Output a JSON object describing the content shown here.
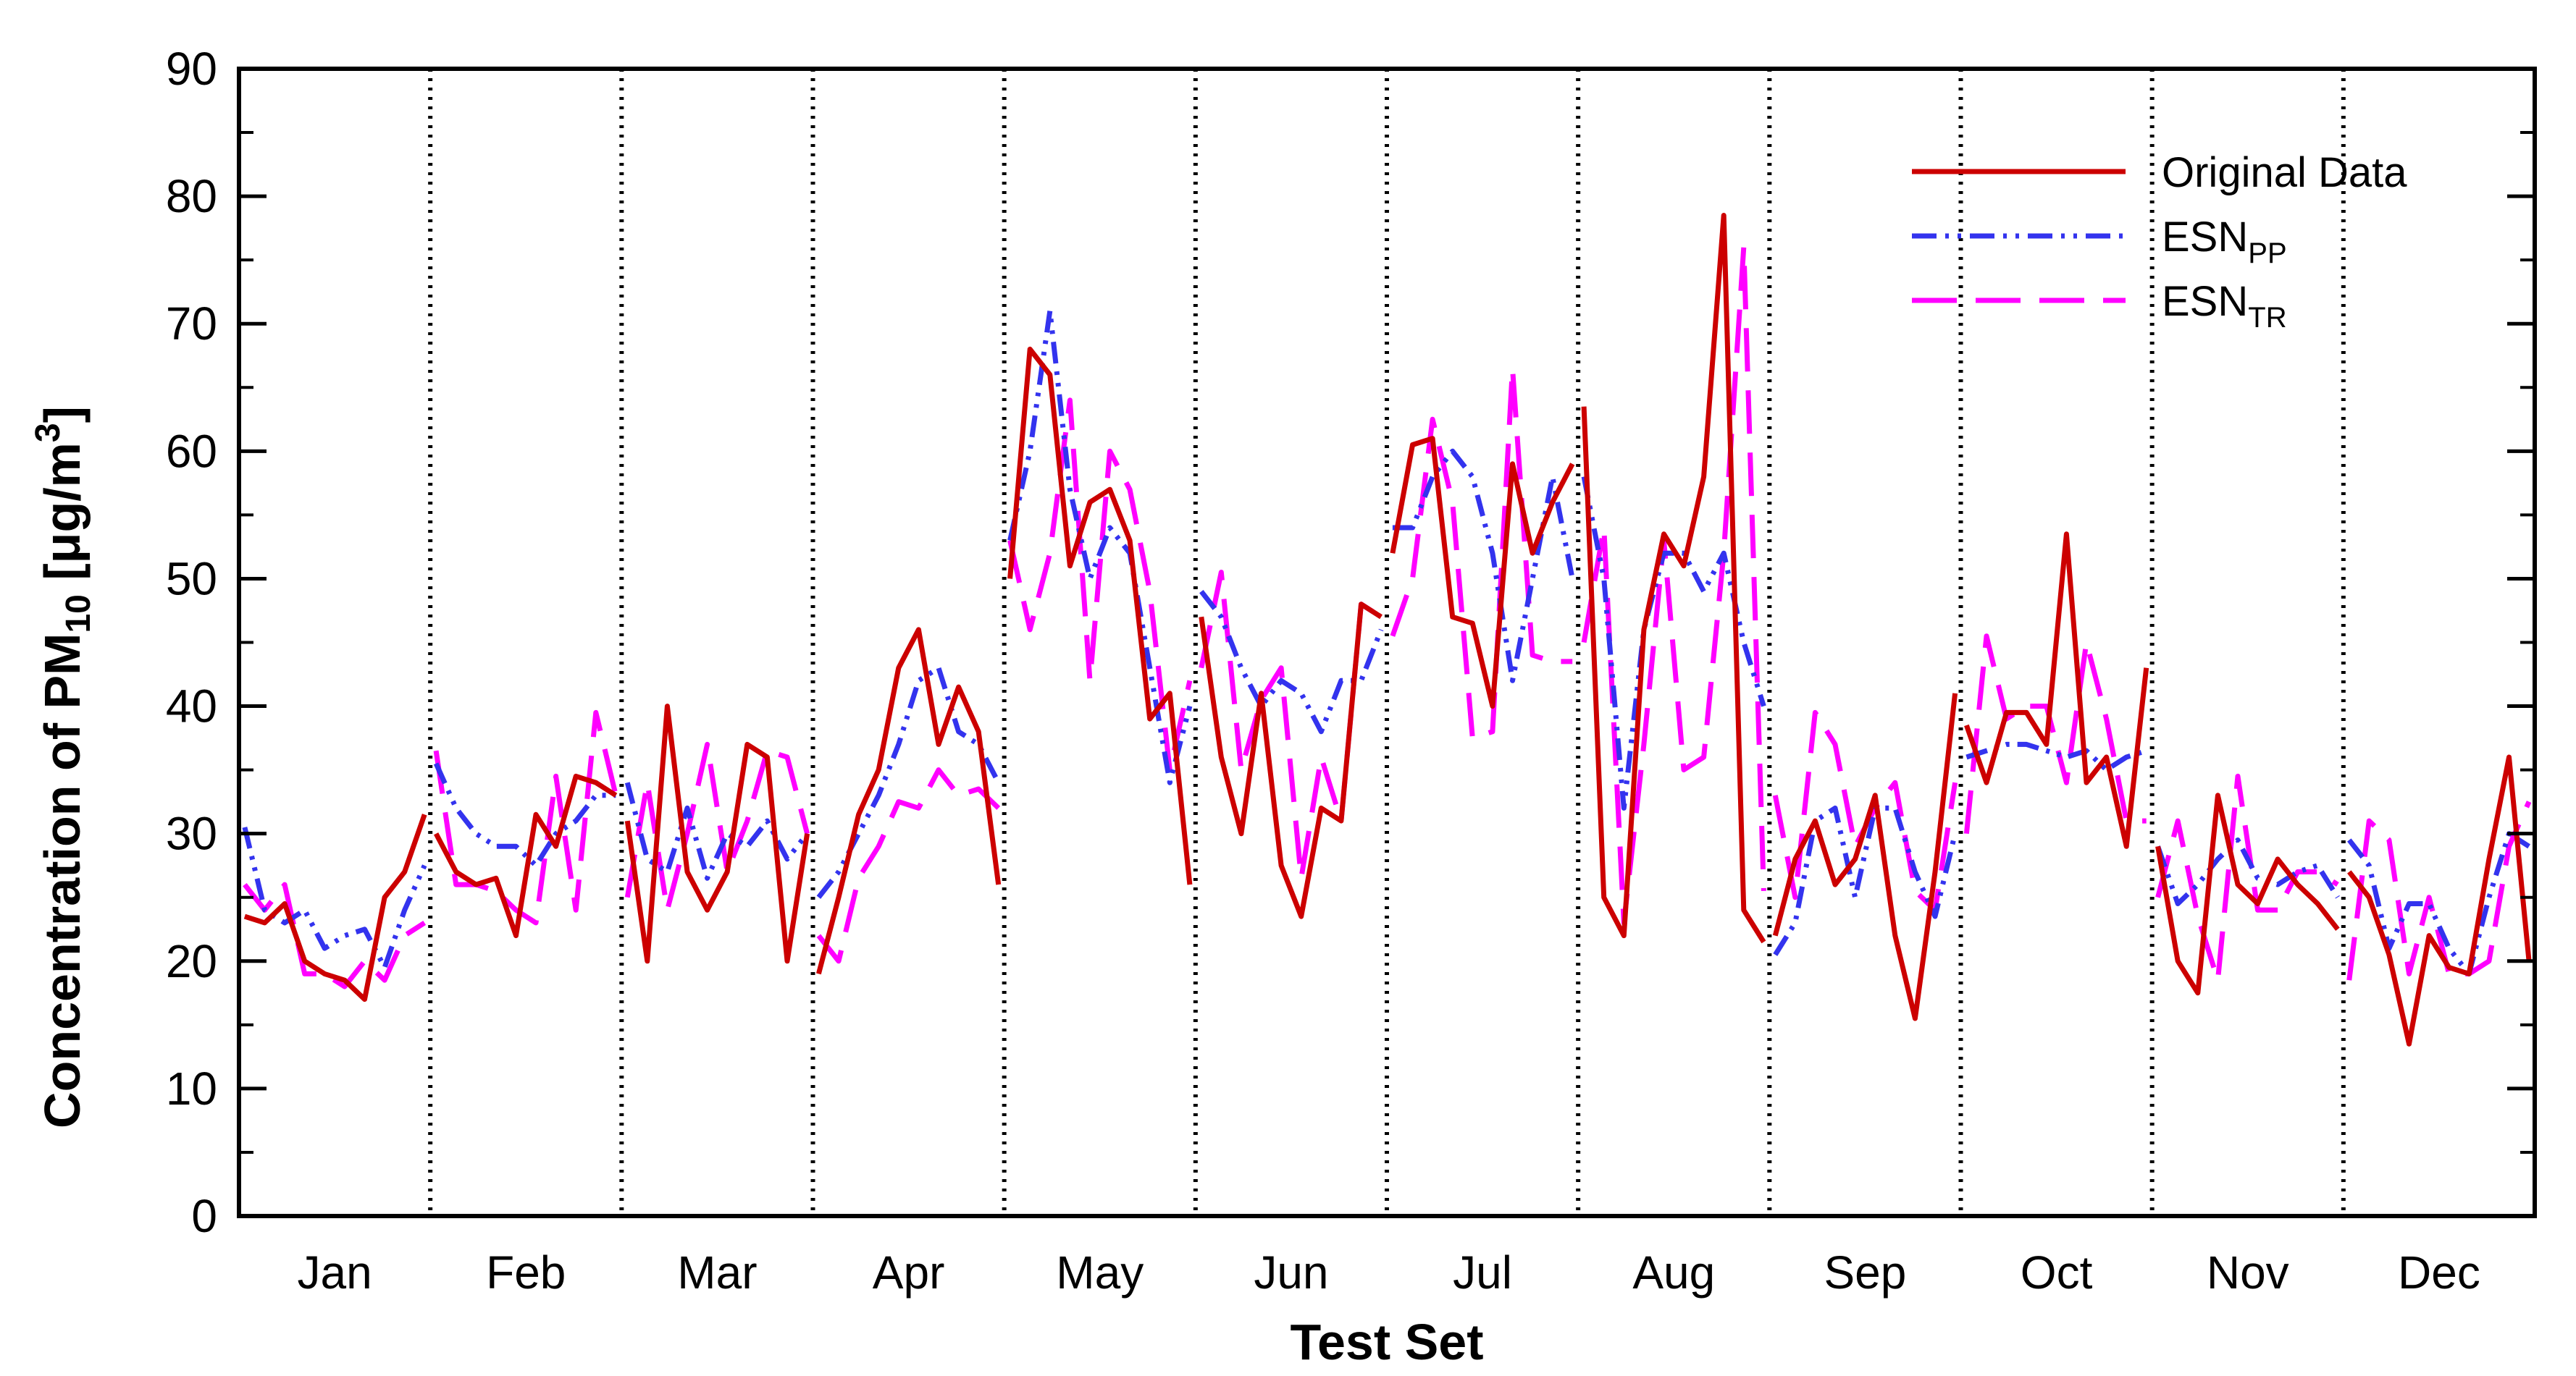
{
  "chart_data": {
    "type": "line",
    "title": "",
    "xlabel": "Test Set",
    "ylabel": {
      "prefix": "Concentration of PM",
      "sub": "10",
      "unit_open": " [μg/m",
      "sup": "3",
      "unit_close": "]"
    },
    "ylim": [
      0,
      90
    ],
    "yticks": [
      0,
      10,
      20,
      30,
      40,
      50,
      60,
      70,
      80,
      90
    ],
    "categories": [
      "Jan",
      "Feb",
      "Mar",
      "Apr",
      "May",
      "Jun",
      "Jul",
      "Aug",
      "Sep",
      "Oct",
      "Nov",
      "Dec"
    ],
    "legend_position": "top-right",
    "legend": [
      {
        "key": "original",
        "main": "Original Data",
        "sub": ""
      },
      {
        "key": "pp",
        "main": "ESN",
        "sub": "PP"
      },
      {
        "key": "tr",
        "main": "ESN",
        "sub": "TR"
      }
    ],
    "series": [
      {
        "name": "Original Data",
        "color": "#cc0000",
        "style": "solid",
        "months": [
          [
            23.5,
            23,
            24.5,
            20,
            19,
            18.5,
            17,
            25,
            27,
            31.5
          ],
          [
            30,
            27,
            26,
            26.5,
            22,
            31.5,
            29,
            34.5,
            34,
            33
          ],
          [
            31,
            20,
            40,
            27,
            24,
            27,
            37,
            36,
            20,
            30
          ],
          [
            19,
            25,
            31.5,
            35,
            43,
            46,
            37,
            41.5,
            38,
            26
          ],
          [
            50,
            68,
            66,
            51,
            56,
            57,
            53,
            39,
            41,
            26
          ],
          [
            47,
            36,
            30,
            41,
            27.5,
            23.5,
            32,
            31,
            48,
            47
          ],
          [
            52,
            60.5,
            61,
            47,
            46.5,
            40,
            59,
            52,
            56,
            59
          ],
          [
            63.5,
            25,
            22,
            46,
            53.5,
            51,
            58,
            78.5,
            24,
            21.5
          ],
          [
            22,
            28,
            31,
            26,
            28,
            33,
            22,
            15.5,
            27,
            41
          ],
          [
            38.5,
            34,
            39.5,
            39.5,
            37,
            53.5,
            34,
            36,
            29,
            43
          ],
          [
            29,
            20,
            17.5,
            33,
            26,
            24.5,
            28,
            26,
            24.5,
            22.5
          ],
          [
            27,
            25,
            20.5,
            13.5,
            22,
            19.5,
            19,
            28,
            36,
            20
          ]
        ]
      },
      {
        "name": "ESNPP",
        "color": "#3333ee",
        "style": "dashdotdot",
        "months": [
          [
            30.5,
            24,
            23,
            24,
            21,
            22,
            22.5,
            19.5,
            24,
            27.5
          ],
          [
            35.5,
            32,
            30,
            29,
            29,
            27.5,
            30,
            31,
            33,
            33
          ],
          [
            34,
            28,
            27,
            32,
            26.5,
            30,
            29,
            31,
            28,
            30
          ],
          [
            25,
            27,
            30,
            33,
            37,
            42,
            43,
            38,
            37,
            34
          ],
          [
            53,
            60,
            71,
            57,
            50,
            54,
            52,
            43,
            34,
            40
          ],
          [
            49,
            47,
            43,
            40,
            42,
            41,
            38,
            42,
            42,
            46
          ],
          [
            54,
            54,
            58,
            60,
            58,
            52,
            42,
            50,
            58,
            50
          ],
          [
            58,
            50,
            32,
            46,
            52,
            52,
            49,
            52,
            45,
            40
          ],
          [
            20.5,
            23,
            31,
            32,
            25,
            32,
            32,
            27,
            23.5,
            30
          ],
          [
            36,
            36.5,
            37,
            37,
            36.5,
            36,
            36.5,
            35,
            36,
            36.5
          ],
          [
            29,
            24.5,
            26,
            28,
            29.5,
            26.5,
            26,
            27,
            27.5,
            25
          ],
          [
            29.5,
            27.5,
            21,
            24.5,
            24.5,
            21,
            19,
            25,
            30,
            29
          ]
        ]
      },
      {
        "name": "ESNTR",
        "color": "#ff00ff",
        "style": "dashed",
        "months": [
          [
            26,
            24,
            26,
            19,
            19,
            18,
            20,
            18.5,
            22,
            23
          ],
          [
            36.5,
            26,
            26,
            25.5,
            24,
            23,
            34.5,
            24,
            39.5,
            33
          ],
          [
            25,
            34,
            24,
            30,
            37,
            27,
            31,
            36.5,
            36,
            30
          ],
          [
            22,
            20,
            26.5,
            29,
            32.5,
            32,
            35,
            33,
            33.5,
            32
          ],
          [
            53,
            46,
            52,
            64,
            42,
            60,
            57,
            49,
            35,
            42
          ],
          [
            43,
            50.5,
            35,
            40.5,
            43,
            26.5,
            36,
            31,
            48,
            47
          ],
          [
            45.5,
            50,
            62.5,
            56,
            37.5,
            38,
            66.5,
            44,
            43.5,
            43.5
          ],
          [
            45,
            54,
            23,
            37,
            53,
            35,
            36,
            52,
            76,
            25.5
          ],
          [
            33,
            25,
            39.5,
            37,
            29,
            32,
            34,
            25.5,
            24,
            34
          ],
          [
            30,
            45.5,
            39,
            40,
            40,
            34,
            45,
            39,
            31,
            31
          ],
          [
            25,
            31,
            23.5,
            18.5,
            34.5,
            24,
            24,
            27,
            27,
            26
          ],
          [
            18.5,
            31,
            29.5,
            19,
            25,
            19,
            19,
            20,
            29,
            32.5
          ]
        ]
      }
    ]
  }
}
